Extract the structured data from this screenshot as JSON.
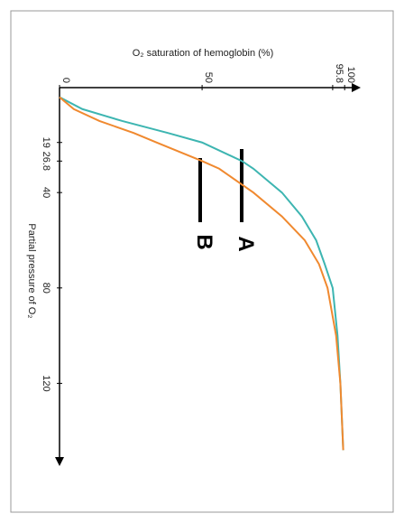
{
  "chart_data": {
    "type": "line",
    "title": "O₂ saturation of hemoglobin (%)",
    "x_label": "Partial pressure of O₂",
    "x": [
      0,
      5,
      10,
      15,
      19,
      26.8,
      30,
      40,
      50,
      60,
      70,
      80,
      100,
      120,
      148
    ],
    "series": [
      {
        "name": "A",
        "color": "#3db5b1",
        "values": [
          0,
          8,
          22,
          38,
          50,
          64,
          68,
          78,
          85,
          90,
          93,
          95.8,
          97.5,
          98.5,
          99.5
        ]
      },
      {
        "name": "B",
        "color": "#f0892f",
        "values": [
          0,
          5,
          14,
          26,
          34,
          50,
          56,
          68,
          78,
          86,
          91,
          94,
          97,
          98.5,
          99.5
        ]
      }
    ],
    "xlim": [
      -4,
      150
    ],
    "xticks": [
      19,
      26.8,
      40,
      80,
      120
    ],
    "ylim": [
      0,
      105
    ],
    "yticks": [
      0,
      50,
      95.8,
      100
    ]
  }
}
